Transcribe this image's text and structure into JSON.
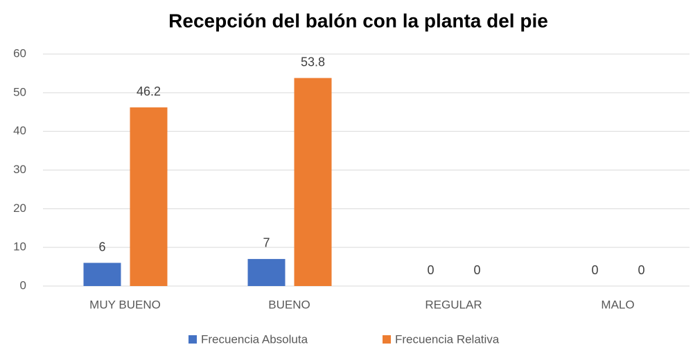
{
  "chart_data": {
    "type": "bar",
    "title": "Recepción del balón con la planta del pie",
    "categories": [
      "MUY BUENO",
      "BUENO",
      "REGULAR",
      "MALO"
    ],
    "series": [
      {
        "name": "Frecuencia Absoluta",
        "color": "#4472c4",
        "values": [
          6,
          7,
          0,
          0
        ]
      },
      {
        "name": "Frecuencia Relativa",
        "color": "#ed7d31",
        "values": [
          46.2,
          53.8,
          0,
          0
        ]
      }
    ],
    "ylim": [
      0,
      60
    ],
    "yticks": [
      0,
      10,
      20,
      30,
      40,
      50,
      60
    ],
    "grid": true,
    "legend": "bottom"
  }
}
